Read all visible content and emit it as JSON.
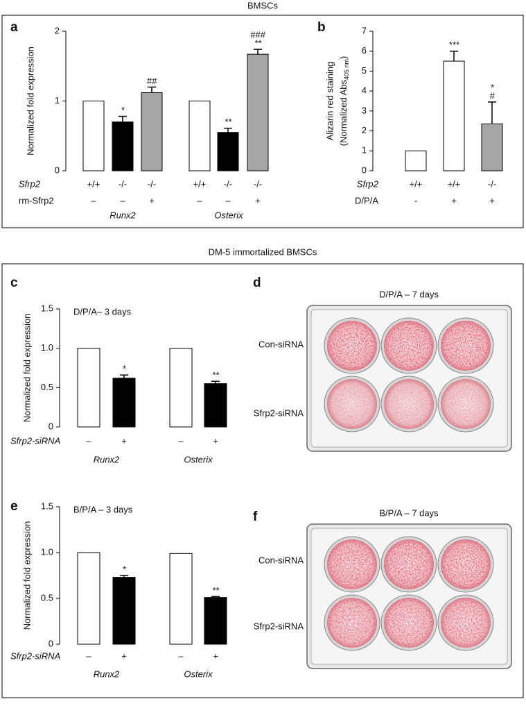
{
  "figure": {
    "title": "BMSCs",
    "subtitle": "DM-5 immortalized BMSCs"
  },
  "chart_data": [
    {
      "panel": "a",
      "type": "bar",
      "ylabel": "Normalized fold expression",
      "ylim": [
        0,
        2
      ],
      "yticks": [
        0,
        1,
        2
      ],
      "values": [
        1,
        0.7,
        1.12,
        1,
        0.55,
        1.67
      ],
      "errors": [
        null,
        0.08,
        0.08,
        null,
        0.06,
        0.07
      ],
      "colors": [
        "#ffffff",
        "#000000",
        "#a6a6a6",
        "#ffffff",
        "#000000",
        "#a6a6a6"
      ],
      "annotations": [
        null,
        [
          "*"
        ],
        [
          "##"
        ],
        null,
        [
          "**"
        ],
        [
          "###",
          "**"
        ]
      ],
      "rows": [
        {
          "label": "Sfrp2",
          "cells": [
            "+/+",
            "-/-",
            "-/-",
            "+/+",
            "-/-",
            "-/-"
          ]
        },
        {
          "label": "rm-Sfrp2",
          "cells": [
            "–",
            "–",
            "+",
            "–",
            "–",
            "+"
          ]
        }
      ],
      "groups": [
        "Runx2",
        "Osterix"
      ]
    },
    {
      "panel": "b",
      "type": "bar",
      "ylabel": [
        "Alizarin red staining",
        "(Normalized Abs",
        "405 nm",
        ")"
      ],
      "ylim": [
        0,
        7
      ],
      "yticks": [
        0,
        1,
        2,
        3,
        4,
        5,
        6,
        7
      ],
      "values": [
        1,
        5.5,
        2.35
      ],
      "errors": [
        null,
        0.5,
        1.1
      ],
      "colors": [
        "#ffffff",
        "#ffffff",
        "#a6a6a6"
      ],
      "annotations": [
        null,
        [
          "***"
        ],
        [
          "*",
          "#"
        ]
      ],
      "rows": [
        {
          "label": "Sfrp2",
          "cells": [
            "+/+",
            "+/+",
            "-/-"
          ]
        },
        {
          "label": "D/P/A",
          "cells": [
            "-",
            "+",
            "+"
          ]
        }
      ]
    },
    {
      "panel": "c",
      "type": "bar",
      "title": "D/P/A– 3 days",
      "ylabel": "Normalized fold expression",
      "ylim": [
        0,
        1.5
      ],
      "yticks": [
        0,
        0.5,
        {
          "value": 1,
          "label": "1.0"
        },
        1.5
      ],
      "values": [
        1,
        0.62,
        1,
        0.55
      ],
      "errors": [
        null,
        0.04,
        null,
        0.03
      ],
      "colors": [
        "#ffffff",
        "#000000",
        "#ffffff",
        "#000000"
      ],
      "annotations": [
        null,
        [
          "*"
        ],
        null,
        [
          "**"
        ]
      ],
      "rows": [
        {
          "label": "Sfrp2-siRNA",
          "cells": [
            "–",
            "+",
            "–",
            "+"
          ]
        }
      ],
      "groups": [
        "Runx2",
        "Osterix"
      ]
    },
    {
      "panel": "e",
      "type": "bar",
      "title": "B/P/A – 3 days",
      "ylabel": "Normalized fold expression",
      "ylim": [
        0,
        1.5
      ],
      "yticks": [
        0,
        0.5,
        {
          "value": 1,
          "label": "1.0"
        },
        1.5
      ],
      "values": [
        1,
        0.73,
        0.99,
        0.51
      ],
      "errors": [
        null,
        0.02,
        null,
        0.01
      ],
      "colors": [
        "#ffffff",
        "#000000",
        "#ffffff",
        "#000000"
      ],
      "annotations": [
        null,
        [
          "*"
        ],
        null,
        [
          "**"
        ]
      ],
      "rows": [
        {
          "label": "Sfrp2-siRNA",
          "cells": [
            "–",
            "+",
            "–",
            "+"
          ]
        }
      ],
      "groups": [
        "Runx2",
        "Osterix"
      ]
    }
  ],
  "plates": [
    {
      "panel": "d",
      "title": "D/P/A – 7 days",
      "rows": [
        "Con-siRNA",
        "Sfrp2-siRNA"
      ]
    },
    {
      "panel": "f",
      "title": "B/P/A – 7 days",
      "rows": [
        "Con-siRNA",
        "Sfrp2-siRNA"
      ]
    }
  ]
}
